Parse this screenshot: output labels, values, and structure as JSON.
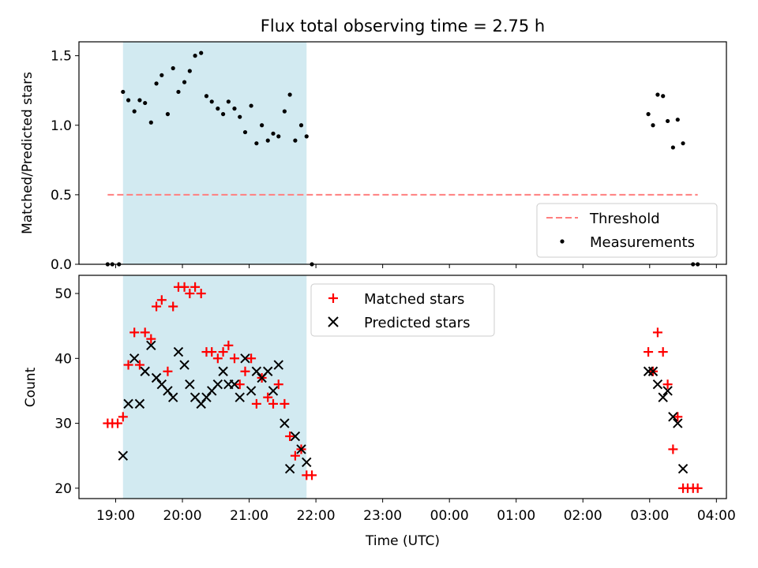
{
  "title": "Flux total observing time = 2.75 h",
  "colors": {
    "shade": "#add8e6",
    "threshold": "#ff7f7f",
    "matched": "#ff0000",
    "predicted": "#000000",
    "points": "#000000"
  },
  "chart_data": [
    {
      "type": "scatter",
      "ylabel": "Matched/Predicted stars",
      "ylim": [
        0,
        1.6
      ],
      "yticks": [
        0.0,
        0.5,
        1.0,
        1.5
      ],
      "ytick_labels": [
        "0.0",
        "0.5",
        "1.0",
        "1.5"
      ],
      "shaded_span_hours": [
        19.11,
        21.86
      ],
      "threshold": {
        "value": 0.5,
        "x_range": [
          18.88,
          27.72
        ],
        "label": "Threshold"
      },
      "legend": {
        "position": "bottom-right",
        "entries": [
          "Threshold",
          "Measurements"
        ]
      },
      "series": [
        {
          "name": "Measurements",
          "x": [
            18.88,
            18.95,
            19.05,
            19.11,
            19.19,
            19.28,
            19.36,
            19.44,
            19.53,
            19.61,
            19.69,
            19.78,
            19.86,
            19.94,
            20.03,
            20.11,
            20.19,
            20.28,
            20.36,
            20.44,
            20.53,
            20.61,
            20.69,
            20.78,
            20.86,
            20.94,
            21.03,
            21.11,
            21.19,
            21.28,
            21.36,
            21.44,
            21.53,
            21.61,
            21.69,
            21.78,
            21.86,
            21.94,
            26.98,
            27.05,
            27.12,
            27.2,
            27.27,
            27.35,
            27.42,
            27.5,
            27.65,
            27.72
          ],
          "y": [
            0.0,
            0.0,
            0.0,
            1.24,
            1.18,
            1.1,
            1.18,
            1.16,
            1.02,
            1.3,
            1.36,
            1.08,
            1.41,
            1.24,
            1.31,
            1.39,
            1.5,
            1.52,
            1.21,
            1.17,
            1.12,
            1.08,
            1.17,
            1.12,
            1.06,
            0.95,
            1.14,
            0.87,
            1.0,
            0.89,
            0.94,
            0.92,
            1.1,
            1.22,
            0.89,
            1.0,
            0.92,
            0.0,
            1.08,
            1.0,
            1.22,
            1.21,
            1.03,
            0.84,
            1.04,
            0.87,
            0.0,
            0.0
          ]
        }
      ]
    },
    {
      "type": "scatter",
      "xlabel": "Time (UTC)",
      "ylabel": "Count",
      "ylim": [
        18.4,
        52.8
      ],
      "yticks": [
        20,
        30,
        40,
        50
      ],
      "ytick_labels": [
        "20",
        "30",
        "40",
        "50"
      ],
      "xlim": [
        18.45,
        28.15
      ],
      "xticks": [
        19,
        20,
        21,
        22,
        23,
        24,
        25,
        26,
        27,
        28
      ],
      "xtick_labels": [
        "19:00",
        "20:00",
        "21:00",
        "22:00",
        "23:00",
        "00:00",
        "01:00",
        "02:00",
        "03:00",
        "04:00"
      ],
      "shaded_span_hours": [
        19.11,
        21.86
      ],
      "legend": {
        "position": "top-center",
        "entries": [
          "Matched stars",
          "Predicted stars"
        ]
      },
      "series": [
        {
          "name": "Matched stars",
          "marker": "+",
          "x": [
            18.88,
            18.95,
            19.03,
            19.11,
            19.19,
            19.28,
            19.36,
            19.44,
            19.53,
            19.61,
            19.69,
            19.78,
            19.86,
            19.94,
            20.03,
            20.11,
            20.19,
            20.28,
            20.36,
            20.44,
            20.53,
            20.61,
            20.69,
            20.78,
            20.86,
            20.94,
            21.03,
            21.11,
            21.19,
            21.28,
            21.36,
            21.44,
            21.53,
            21.61,
            21.69,
            21.78,
            21.86,
            21.94,
            26.98,
            27.05,
            27.12,
            27.2,
            27.27,
            27.35,
            27.42,
            27.5,
            27.57,
            27.65,
            27.72
          ],
          "y": [
            30,
            30,
            30,
            31,
            39,
            44,
            39,
            44,
            43,
            48,
            49,
            38,
            48,
            51,
            51,
            50,
            51,
            50,
            41,
            41,
            40,
            41,
            42,
            40,
            36,
            38,
            40,
            33,
            37,
            34,
            33,
            36,
            33,
            28,
            25,
            26,
            22,
            22,
            41,
            38,
            44,
            41,
            36,
            26,
            31,
            20,
            20,
            20,
            20
          ]
        },
        {
          "name": "Predicted stars",
          "marker": "x",
          "x": [
            19.11,
            19.19,
            19.28,
            19.36,
            19.44,
            19.53,
            19.61,
            19.69,
            19.78,
            19.86,
            19.94,
            20.03,
            20.11,
            20.19,
            20.28,
            20.36,
            20.44,
            20.53,
            20.61,
            20.69,
            20.78,
            20.86,
            20.94,
            21.03,
            21.11,
            21.19,
            21.28,
            21.36,
            21.44,
            21.53,
            21.61,
            21.69,
            21.78,
            21.86,
            26.98,
            27.05,
            27.12,
            27.2,
            27.27,
            27.35,
            27.42,
            27.5
          ],
          "y": [
            25,
            33,
            40,
            33,
            38,
            42,
            37,
            36,
            35,
            34,
            41,
            39,
            36,
            34,
            33,
            34,
            35,
            36,
            38,
            36,
            36,
            34,
            40,
            35,
            38,
            37,
            38,
            35,
            39,
            30,
            23,
            28,
            26,
            24,
            38,
            38,
            36,
            34,
            35,
            31,
            30,
            23
          ]
        }
      ]
    }
  ]
}
